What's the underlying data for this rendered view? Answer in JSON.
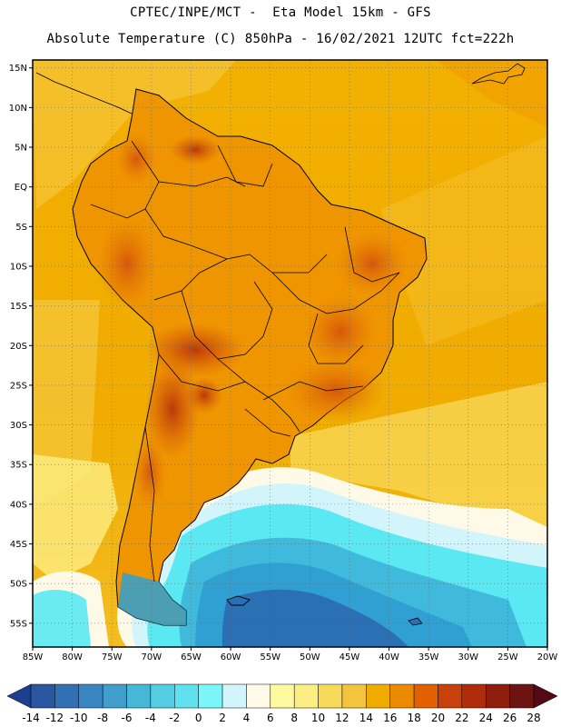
{
  "header": {
    "line1": "CPTEC/INPE/MCT -  Eta Model 15km - GFS",
    "line2": "Absolute Temperature (C) 850hPa - 16/02/2021 12UTC fct=222h"
  },
  "map": {
    "lon_range": [
      -85,
      -20
    ],
    "lat_range": [
      -58,
      16
    ],
    "lat_ticks": [
      {
        "value": 15,
        "label": "15N"
      },
      {
        "value": 10,
        "label": "10N"
      },
      {
        "value": 5,
        "label": "5N"
      },
      {
        "value": 0,
        "label": "EQ"
      },
      {
        "value": -5,
        "label": "5S"
      },
      {
        "value": -10,
        "label": "10S"
      },
      {
        "value": -15,
        "label": "15S"
      },
      {
        "value": -20,
        "label": "20S"
      },
      {
        "value": -25,
        "label": "25S"
      },
      {
        "value": -30,
        "label": "30S"
      },
      {
        "value": -35,
        "label": "35S"
      },
      {
        "value": -40,
        "label": "40S"
      },
      {
        "value": -45,
        "label": "45S"
      },
      {
        "value": -50,
        "label": "50S"
      },
      {
        "value": -55,
        "label": "55S"
      }
    ],
    "lon_ticks": [
      {
        "value": -85,
        "label": "85W"
      },
      {
        "value": -80,
        "label": "80W"
      },
      {
        "value": -75,
        "label": "75W"
      },
      {
        "value": -70,
        "label": "70W"
      },
      {
        "value": -65,
        "label": "65W"
      },
      {
        "value": -60,
        "label": "60W"
      },
      {
        "value": -55,
        "label": "55W"
      },
      {
        "value": -50,
        "label": "50W"
      },
      {
        "value": -45,
        "label": "45W"
      },
      {
        "value": -40,
        "label": "40W"
      },
      {
        "value": -35,
        "label": "35W"
      },
      {
        "value": -30,
        "label": "30W"
      },
      {
        "value": -25,
        "label": "25W"
      },
      {
        "value": -20,
        "label": "20W"
      }
    ],
    "grid_lines": "dotted",
    "colors": {
      "ocean_warm": "#f0ac00",
      "ocean_mid": "#f5c437",
      "land": "#ef9500",
      "land_hot": "#d5540b",
      "land_hotter": "#b8340b",
      "cold_light": "#d2f4fb",
      "cold_cyan": "#5ae8f2",
      "cold_blue": "#2fa0d1",
      "cold_deep": "#2b6fb4"
    }
  },
  "colorbar": {
    "labels": [
      "-14",
      "-12",
      "-10",
      "-8",
      "-6",
      "-4",
      "-2",
      "0",
      "2",
      "4",
      "6",
      "8",
      "10",
      "12",
      "14",
      "16",
      "18",
      "20",
      "22",
      "24",
      "26",
      "28"
    ],
    "colors": [
      "#1e3f8f",
      "#2a57a0",
      "#3270b4",
      "#3a86c2",
      "#3f9ecc",
      "#46b7d6",
      "#52cde2",
      "#60e2ee",
      "#7af6fa",
      "#d2f4fb",
      "#fffae8",
      "#fffaa0",
      "#fcee82",
      "#f8da5a",
      "#f3c43c",
      "#f0ac00",
      "#eb8a00",
      "#e16000",
      "#c8400a",
      "#b02d0c",
      "#8f1e0e",
      "#6c1412",
      "#520a16"
    ]
  }
}
